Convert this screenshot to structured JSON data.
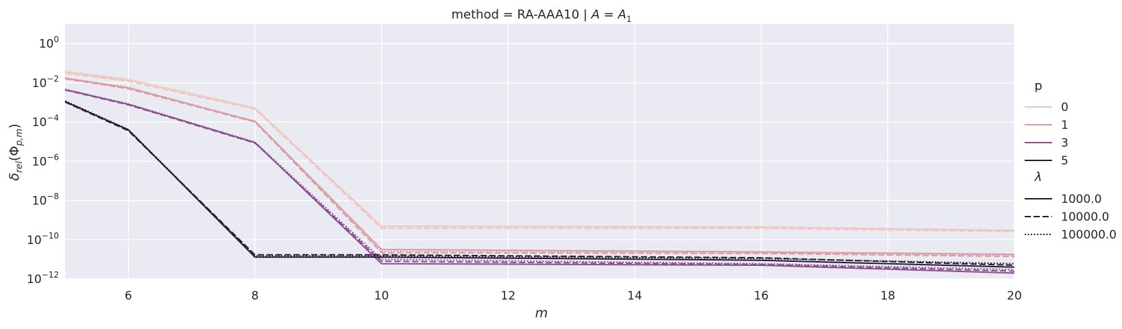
{
  "chart_data": {
    "type": "line",
    "title_prefix": "method = RA-AAA10 | ",
    "title_math": "A = A",
    "title_sub": "1",
    "xlabel": "m",
    "ylabel_main": "δ",
    "ylabel_sub": "rel",
    "ylabel_paren": "(Φ",
    "ylabel_sub2": "p,m",
    "ylabel_close": ")",
    "x": [
      5,
      6,
      8,
      10,
      16,
      20
    ],
    "xlim": [
      5,
      20
    ],
    "ylim": [
      1e-12,
      10
    ],
    "yscale": "log",
    "x_ticks": [
      6,
      8,
      10,
      12,
      14,
      16,
      18,
      20
    ],
    "y_ticks": [
      {
        "exp": 0,
        "base": "10",
        "power": "0"
      },
      {
        "exp": -2,
        "base": "10",
        "power": "−2"
      },
      {
        "exp": -4,
        "base": "10",
        "power": "−4"
      },
      {
        "exp": -6,
        "base": "10",
        "power": "−6"
      },
      {
        "exp": -8,
        "base": "10",
        "power": "−8"
      },
      {
        "exp": -10,
        "base": "10",
        "power": "−10"
      },
      {
        "exp": -12,
        "base": "10",
        "power": "−12"
      }
    ],
    "grid": true,
    "legend_position": "right",
    "legend_hue_title": "p",
    "legend_hue": [
      {
        "label": "0",
        "color": "#efc8bd"
      },
      {
        "label": "1",
        "color": "#d99aa3"
      },
      {
        "label": "3",
        "color": "#8c4f8e"
      },
      {
        "label": "5",
        "color": "#2a1a35"
      }
    ],
    "legend_style_title": "λ",
    "legend_style": [
      {
        "label": "1000.0",
        "dash": "solid"
      },
      {
        "label": "10000.0",
        "dash": "dashed"
      },
      {
        "label": "100000.0",
        "dash": "dotted"
      }
    ],
    "series": [
      {
        "p": "0",
        "lambda": "1000.0",
        "color": "#efc8bd",
        "dash": "solid",
        "values": [
          0.035,
          0.014,
          0.0005,
          5e-10,
          4.5e-10,
          3e-10
        ]
      },
      {
        "p": "0",
        "lambda": "10000.0",
        "color": "#efc8bd",
        "dash": "dashed",
        "values": [
          0.03,
          0.012,
          0.00045,
          3.8e-10,
          3.8e-10,
          2.6e-10
        ]
      },
      {
        "p": "0",
        "lambda": "100000.0",
        "color": "#efc8bd",
        "dash": "dotted",
        "values": [
          0.04,
          0.016,
          0.00055,
          4.3e-10,
          4.2e-10,
          2.8e-10
        ]
      },
      {
        "p": "1",
        "lambda": "1000.0",
        "color": "#d99aa3",
        "dash": "solid",
        "values": [
          0.017,
          0.0055,
          0.00011,
          3.2e-11,
          2.4e-11,
          1.8e-11
        ]
      },
      {
        "p": "1",
        "lambda": "10000.0",
        "color": "#d99aa3",
        "dash": "dashed",
        "values": [
          0.016,
          0.005,
          0.0001,
          2.2e-11,
          2e-11,
          1.4e-11
        ]
      },
      {
        "p": "1",
        "lambda": "100000.0",
        "color": "#d99aa3",
        "dash": "dotted",
        "values": [
          0.018,
          0.006,
          0.000105,
          2.6e-11,
          2.2e-11,
          1.6e-11
        ]
      },
      {
        "p": "3",
        "lambda": "1000.0",
        "color": "#8c4f8e",
        "dash": "solid",
        "values": [
          0.0045,
          0.0008,
          9e-06,
          6e-12,
          5e-12,
          2e-12
        ]
      },
      {
        "p": "3",
        "lambda": "10000.0",
        "color": "#8c4f8e",
        "dash": "dashed",
        "values": [
          0.0043,
          0.00075,
          8.5e-06,
          8e-12,
          5.5e-12,
          2.5e-12
        ]
      },
      {
        "p": "3",
        "lambda": "100000.0",
        "color": "#8c4f8e",
        "dash": "dotted",
        "values": [
          0.0047,
          0.00085,
          9.5e-06,
          1e-11,
          6e-12,
          3e-12
        ]
      },
      {
        "p": "5",
        "lambda": "1000.0",
        "color": "#2a1a35",
        "dash": "solid",
        "values": [
          0.0011,
          4e-05,
          1.3e-11,
          1.3e-11,
          9e-12,
          4e-12
        ]
      },
      {
        "p": "5",
        "lambda": "10000.0",
        "color": "#2a1a35",
        "dash": "dashed",
        "values": [
          0.00105,
          3.6e-05,
          1.7e-11,
          1.7e-11,
          1.2e-11,
          5e-12
        ]
      },
      {
        "p": "5",
        "lambda": "100000.0",
        "color": "#2a1a35",
        "dash": "dotted",
        "values": [
          0.0012,
          4.2e-05,
          1.5e-11,
          1.5e-11,
          1.1e-11,
          6e-12
        ]
      }
    ]
  }
}
